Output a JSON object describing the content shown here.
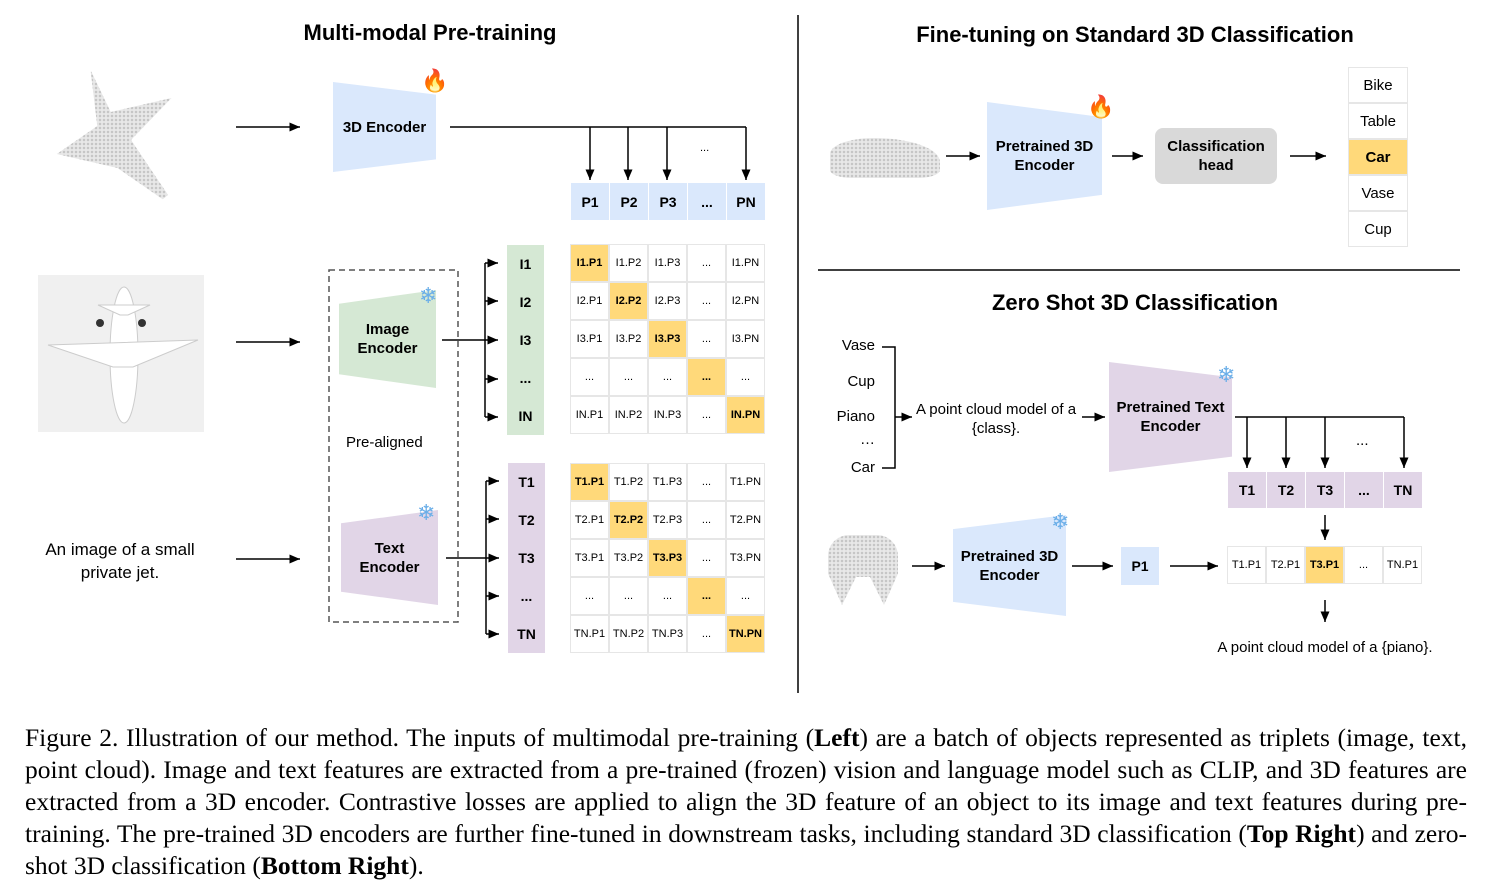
{
  "left": {
    "title": "Multi-modal Pre-training",
    "text_input": "An image of a small private jet.",
    "encoder_3d": "3D Encoder",
    "image_encoder": "Image Encoder",
    "text_encoder": "Text Encoder",
    "pre_aligned": "Pre-aligned",
    "ellipsis": "...",
    "point_features": [
      "P1",
      "P2",
      "P3",
      "...",
      "PN"
    ],
    "image_features": [
      "I1",
      "I2",
      "I3",
      "...",
      "IN"
    ],
    "text_features": [
      "T1",
      "T2",
      "T3",
      "...",
      "TN"
    ],
    "image_matrix": [
      [
        "I1.P1",
        "I1.P2",
        "I1.P3",
        "...",
        "I1.PN"
      ],
      [
        "I2.P1",
        "I2.P2",
        "I2.P3",
        "...",
        "I2.PN"
      ],
      [
        "I3.P1",
        "I3.P2",
        "I3.P3",
        "...",
        "I3.PN"
      ],
      [
        "...",
        "...",
        "...",
        "...",
        "..."
      ],
      [
        "IN.P1",
        "IN.P2",
        "IN.P3",
        "...",
        "IN.PN"
      ]
    ],
    "text_matrix": [
      [
        "T1.P1",
        "T1.P2",
        "T1.P3",
        "...",
        "T1.PN"
      ],
      [
        "T2.P1",
        "T2.P2",
        "T2.P3",
        "...",
        "T2.PN"
      ],
      [
        "T3.P1",
        "T3.P2",
        "T3.P3",
        "...",
        "T3.PN"
      ],
      [
        "...",
        "...",
        "...",
        "...",
        "..."
      ],
      [
        "TN.P1",
        "TN.P2",
        "TN.P3",
        "...",
        "TN.PN"
      ]
    ]
  },
  "finetune": {
    "title": "Fine-tuning on Standard 3D Classification",
    "encoder": "Pretrained 3D Encoder",
    "head": "Classification head",
    "classes": [
      "Bike",
      "Table",
      "Car",
      "Vase",
      "Cup"
    ],
    "selected_index": 2
  },
  "zeroshot": {
    "title": "Zero Shot 3D Classification",
    "classes": [
      "Vase",
      "Cup",
      "Piano",
      "…",
      "Car"
    ],
    "prompt": "A point cloud model of a {class}.",
    "text_encoder": "Pretrained Text Encoder",
    "encoder_3d": "Pretrained 3D Encoder",
    "text_features": [
      "T1",
      "T2",
      "T3",
      "...",
      "TN"
    ],
    "ellipsis": "...",
    "point_feature": "P1",
    "scores": [
      "T1.P1",
      "T2.P1",
      "T3.P1",
      "...",
      "TN.P1"
    ],
    "selected_index": 2,
    "result": "A point cloud model of a {piano}."
  },
  "icons": {
    "trainable": "fire-icon",
    "frozen": "snowflake-icon"
  },
  "colors": {
    "point": "#dae8fc",
    "image": "#d5e8d4",
    "text": "#e1d5e7",
    "highlight": "#ffd97a",
    "head": "#d9d9d9"
  },
  "caption": [
    {
      "text": "Figure 2. Illustration of our method. The inputs of multimodal pre-training (",
      "bold": false
    },
    {
      "text": "Left",
      "bold": true
    },
    {
      "text": ") are a batch of objects represented as triplets (image, text, point cloud). Image and text features are extracted from a pre-trained (frozen) vision and language model such as CLIP, and 3D features are extracted from a 3D encoder. Contrastive losses are applied to align the 3D feature of an object to its image and text features during pre-training. The pre-trained 3D encoders are further fine-tuned in downstream tasks, including standard 3D classification (",
      "bold": false
    },
    {
      "text": "Top Right",
      "bold": true
    },
    {
      "text": ") and zero-shot 3D classification (",
      "bold": false
    },
    {
      "text": "Bottom Right",
      "bold": true
    },
    {
      "text": ").",
      "bold": false
    }
  ]
}
